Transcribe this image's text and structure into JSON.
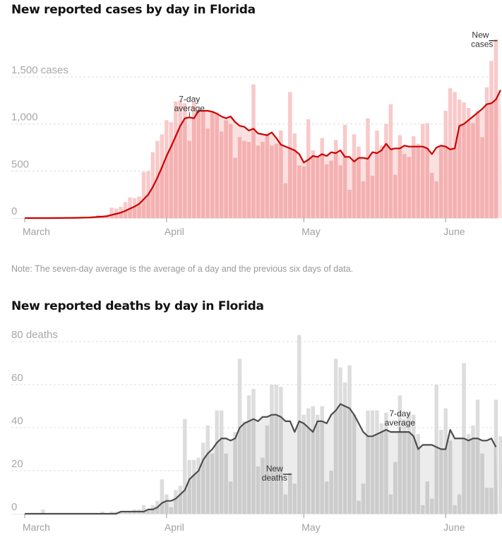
{
  "note": "Note: The seven-day average is the average of a day and the previous six days of data.",
  "chart_data": [
    {
      "type": "bar",
      "title": "New reported cases by day in Florida",
      "xlabel": "",
      "ylabel": "cases",
      "ylim": [
        0,
        1900
      ],
      "y_ticks": [
        0,
        500,
        1000,
        1500
      ],
      "y_tick_labels": [
        "0",
        "500",
        "1,000",
        "1,500 cases"
      ],
      "x_tick_labels": [
        "March",
        "April",
        "May",
        "June"
      ],
      "x_tick_day_index": [
        0,
        31,
        61,
        92
      ],
      "start_date": "March 1",
      "grid": true,
      "annotations": [
        {
          "text": [
            "7-day",
            "average"
          ],
          "day_index": 36,
          "target": "average"
        },
        {
          "text": [
            "New",
            "cases"
          ],
          "day_index": 103,
          "target": "bar"
        }
      ],
      "colors": {
        "line": "#cc0000",
        "bar_above": "#f9c9c9",
        "bar_below": "#f4b1b1",
        "area": "#fbe0e0"
      },
      "series": [
        {
          "name": "New cases",
          "values": [
            0,
            0,
            0,
            0,
            0,
            0,
            0,
            1,
            2,
            2,
            3,
            5,
            8,
            10,
            12,
            20,
            30,
            25,
            35,
            110,
            100,
            120,
            170,
            220,
            210,
            230,
            490,
            500,
            700,
            820,
            890,
            1040,
            1020,
            1240,
            1250,
            1220,
            820,
            1230,
            1150,
            1150,
            950,
            1140,
            1120,
            920,
            1040,
            1000,
            640,
            860,
            820,
            810,
            1420,
            770,
            810,
            900,
            770,
            790,
            930,
            370,
            1340,
            900,
            560,
            550,
            1050,
            720,
            660,
            850,
            570,
            610,
            830,
            560,
            990,
            300,
            890,
            760,
            390,
            1060,
            450,
            930,
            770,
            1000,
            1210,
            460,
            880,
            680,
            650,
            870,
            790,
            1000,
            1010,
            480,
            390,
            760,
            1140,
            1380,
            1340,
            1260,
            1230,
            1170,
            1010,
            1140,
            860,
            1390,
            1670,
            1900
          ]
        },
        {
          "name": "7-day average",
          "values": [
            0,
            0,
            0,
            0,
            0,
            0,
            0,
            1,
            1,
            2,
            2,
            3,
            4,
            5,
            6,
            9,
            13,
            16,
            20,
            33,
            45,
            58,
            77,
            100,
            122,
            150,
            200,
            250,
            330,
            430,
            540,
            660,
            760,
            870,
            980,
            1060,
            1070,
            1060,
            1140,
            1140,
            1140,
            1130,
            1110,
            1080,
            1060,
            1080,
            1020,
            980,
            970,
            930,
            950,
            900,
            890,
            880,
            910,
            850,
            780,
            760,
            740,
            720,
            680,
            590,
            620,
            660,
            650,
            680,
            660,
            700,
            690,
            720,
            650,
            650,
            600,
            640,
            640,
            630,
            700,
            690,
            720,
            790,
            730,
            740,
            740,
            770,
            760,
            760,
            760,
            760,
            740,
            680,
            750,
            770,
            760,
            730,
            740,
            980,
            1000,
            1040,
            1080,
            1120,
            1160,
            1210,
            1220,
            1260,
            1360
          ]
        }
      ]
    },
    {
      "type": "bar",
      "title": "New reported deaths by day in Florida",
      "xlabel": "",
      "ylabel": "deaths",
      "ylim": [
        0,
        83
      ],
      "y_ticks": [
        0,
        20,
        40,
        60,
        80
      ],
      "y_tick_labels": [
        "0",
        "20",
        "40",
        "60",
        "80 deaths"
      ],
      "x_tick_labels": [
        "March",
        "April",
        "May",
        "June"
      ],
      "x_tick_day_index": [
        0,
        31,
        61,
        92
      ],
      "start_date": "March 1",
      "grid": true,
      "annotations": [
        {
          "text": [
            "New",
            "deaths"
          ],
          "day_index": 58,
          "target": "bar"
        },
        {
          "text": [
            "7-day",
            "average"
          ],
          "day_index": 82,
          "target": "average"
        }
      ],
      "colors": {
        "line": "#4d4d4d",
        "bar_above": "#dddddd",
        "bar_below": "#cccccc",
        "area": "#ececec"
      },
      "series": [
        {
          "name": "New deaths",
          "values": [
            0,
            0,
            0,
            0,
            2,
            0,
            0,
            0,
            0,
            0,
            0,
            0,
            0,
            0,
            0,
            0,
            0,
            1,
            0,
            1,
            1,
            1,
            1,
            1,
            2,
            2,
            4,
            2,
            4,
            6,
            16,
            9,
            3,
            11,
            13,
            44,
            25,
            25,
            26,
            33,
            41,
            28,
            48,
            48,
            28,
            15,
            38,
            72,
            43,
            55,
            58,
            22,
            26,
            41,
            60,
            60,
            59,
            9,
            19,
            14,
            83,
            46,
            49,
            50,
            46,
            50,
            15,
            20,
            72,
            68,
            61,
            69,
            46,
            6,
            14,
            48,
            48,
            48,
            42,
            47,
            9,
            24,
            55,
            44,
            47,
            46,
            37,
            4,
            15,
            7,
            60,
            39,
            49,
            34,
            4,
            9,
            70,
            37,
            41,
            53,
            28,
            12,
            12,
            53,
            36,
            47,
            29
          ]
        },
        {
          "name": "7-day average",
          "values": [
            0,
            0,
            0,
            0,
            0,
            0,
            0,
            0,
            0,
            0,
            0,
            0,
            0,
            0,
            0,
            0,
            0,
            0,
            0,
            0,
            0,
            1,
            1,
            1,
            1,
            1,
            1,
            2,
            2,
            3,
            5,
            6,
            6,
            7,
            9,
            11,
            16,
            18,
            20,
            25,
            28,
            30,
            33,
            35,
            35,
            34,
            35,
            40,
            42,
            43,
            44,
            43,
            45,
            45,
            46,
            46,
            45,
            43,
            43,
            38,
            43,
            42,
            40,
            38,
            43,
            43,
            42,
            46,
            48,
            51,
            50,
            49,
            46,
            42,
            38,
            36,
            36,
            37,
            38,
            39,
            38,
            38,
            38,
            38,
            38,
            36,
            30,
            32,
            32,
            32,
            31,
            30,
            30,
            39,
            35,
            35,
            35,
            34,
            35,
            35,
            34,
            34,
            35,
            31
          ]
        }
      ]
    }
  ]
}
